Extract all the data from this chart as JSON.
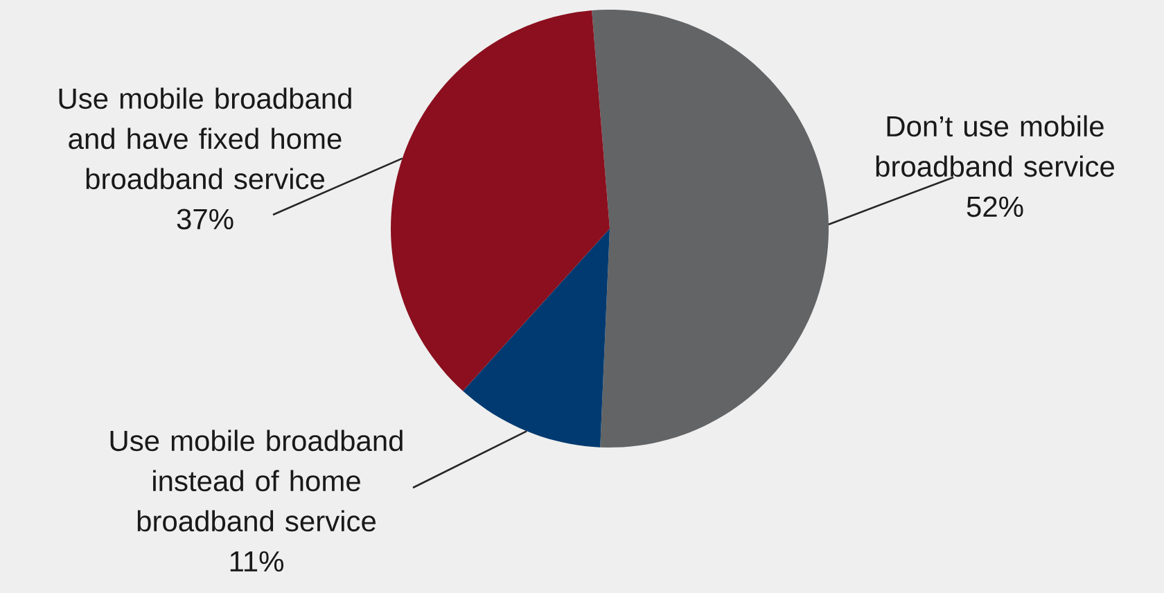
{
  "chart_data": {
    "type": "pie",
    "categories": [
      "Don’t use mobile broadband service",
      "Use mobile broadband instead of home broadband service",
      "Use mobile broadband and have fixed home broadband service"
    ],
    "values": [
      52,
      11,
      37
    ],
    "value_labels": [
      "52%",
      "11%",
      "37%"
    ],
    "colors": [
      "#636466",
      "#003a70",
      "#8b0f1e"
    ]
  }
}
